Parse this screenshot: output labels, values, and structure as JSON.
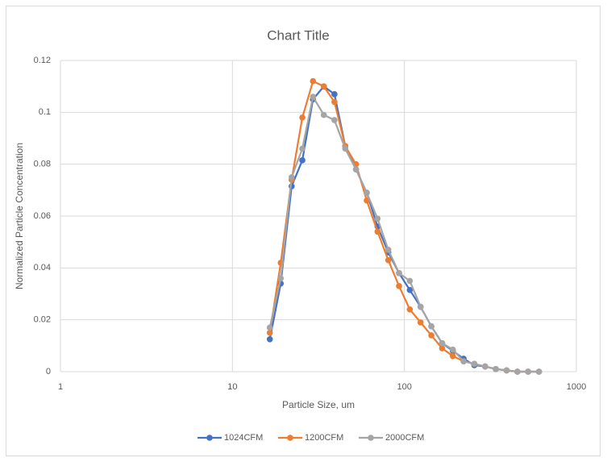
{
  "chart_data": {
    "type": "scatter",
    "title": "Chart Title",
    "x_label": "Particle Size, um",
    "y_label": "Normalized Particle Concentration",
    "x": [
      16.5,
      19.1,
      22.1,
      25.5,
      29.4,
      34.0,
      39.2,
      45.3,
      52.3,
      60.4,
      69.8,
      80.6,
      93.1,
      107.5,
      124.2,
      143.4,
      165.7,
      191.3,
      221,
      255,
      295,
      340,
      393,
      454,
      524,
      606
    ],
    "series": [
      {
        "name": "1024CFM",
        "color": "#4472c4",
        "values": [
          0.0125,
          0.034,
          0.0715,
          0.0815,
          0.105,
          0.11,
          0.107,
          0.087,
          0.078,
          0.069,
          0.056,
          0.046,
          0.038,
          0.0315,
          0.025,
          0.0175,
          0.011,
          0.008,
          0.005,
          0.0025,
          0.002,
          0.001,
          0.0005,
          0,
          0,
          0
        ]
      },
      {
        "name": "1200CFM",
        "color": "#ed7d31",
        "values": [
          0.015,
          0.042,
          0.074,
          0.098,
          0.112,
          0.11,
          0.104,
          0.087,
          0.08,
          0.066,
          0.054,
          0.043,
          0.033,
          0.024,
          0.019,
          0.014,
          0.009,
          0.006,
          0.004,
          0.003,
          0.002,
          0.001,
          0.0005,
          0,
          0,
          0
        ]
      },
      {
        "name": "2000CFM",
        "color": "#a5a5a5",
        "values": [
          0.017,
          0.036,
          0.075,
          0.086,
          0.106,
          0.099,
          0.097,
          0.086,
          0.078,
          0.069,
          0.059,
          0.047,
          0.038,
          0.035,
          0.025,
          0.0175,
          0.011,
          0.0085,
          0.004,
          0.003,
          0.002,
          0.001,
          0.0005,
          0,
          0,
          0
        ]
      }
    ],
    "xlim": [
      1,
      1000
    ],
    "xticks": [
      1,
      10,
      100,
      1000
    ],
    "xscale": "log",
    "ylim": [
      0,
      0.12
    ],
    "yticks": [
      0,
      0.02,
      0.04,
      0.06,
      0.08,
      0.1,
      0.12
    ],
    "grid": true,
    "legend": "bottom"
  }
}
